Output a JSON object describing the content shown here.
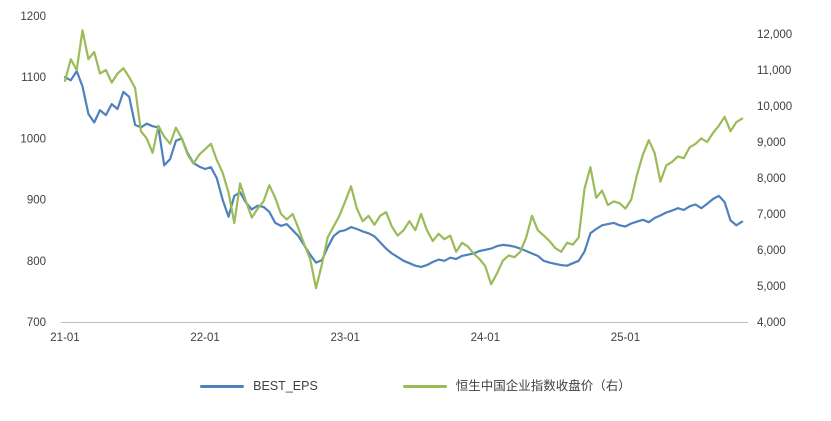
{
  "chart_data": {
    "type": "line",
    "x_unit": "months since 2021-01",
    "x_start": 0,
    "x_step": 0.5,
    "x_range": [
      0,
      58.5
    ],
    "x_ticks": [
      {
        "pos": 0,
        "label": "21-01"
      },
      {
        "pos": 12,
        "label": "22-01"
      },
      {
        "pos": 24,
        "label": "23-01"
      },
      {
        "pos": 36,
        "label": "24-01"
      },
      {
        "pos": 48,
        "label": "25-01"
      }
    ],
    "grid": false,
    "legend_position": "bottom",
    "background": "#ffffff",
    "axis_line_color": "#bfbfbf",
    "left_axis": {
      "min": 700,
      "max": 1200,
      "ticks": [
        700,
        800,
        900,
        1000,
        1100,
        1200
      ],
      "tick_labels": [
        "700",
        "800",
        "900",
        "1000",
        "1100",
        "1200"
      ]
    },
    "right_axis": {
      "min": 4000,
      "max": 12500,
      "ticks": [
        4000,
        5000,
        6000,
        7000,
        8000,
        9000,
        10000,
        11000,
        12000
      ],
      "tick_labels": [
        "4,000",
        "5,000",
        "6,000",
        "7,000",
        "8,000",
        "9,000",
        "10,000",
        "11,000",
        "12,000"
      ]
    },
    "series": [
      {
        "name": "BEST_EPS",
        "axis": "left",
        "color": "#4F81BD",
        "values": [
          1100,
          1095,
          1110,
          1085,
          1040,
          1026,
          1046,
          1038,
          1056,
          1048,
          1076,
          1068,
          1022,
          1018,
          1024,
          1020,
          1018,
          956,
          966,
          996,
          1000,
          976,
          960,
          954,
          950,
          953,
          935,
          900,
          872,
          906,
          912,
          895,
          884,
          890,
          888,
          880,
          862,
          857,
          860,
          850,
          840,
          825,
          810,
          797,
          801,
          822,
          840,
          848,
          850,
          855,
          852,
          848,
          845,
          840,
          830,
          820,
          812,
          806,
          800,
          796,
          792,
          790,
          793,
          798,
          802,
          800,
          805,
          803,
          808,
          810,
          812,
          816,
          818,
          820,
          824,
          826,
          825,
          823,
          820,
          816,
          812,
          808,
          800,
          797,
          795,
          793,
          792,
          796,
          800,
          815,
          845,
          852,
          858,
          860,
          862,
          858,
          856,
          861,
          864,
          867,
          863,
          870,
          874,
          879,
          882,
          886,
          883,
          889,
          892,
          886,
          893,
          901,
          906,
          896,
          866,
          858,
          864
        ]
      },
      {
        "name": "恒生中国企业指数收盘价（右）",
        "axis": "right",
        "color": "#9BBB59",
        "values": [
          10700,
          11300,
          11000,
          12100,
          11300,
          11500,
          10900,
          11000,
          10650,
          10900,
          11050,
          10800,
          10500,
          9300,
          9100,
          8700,
          9450,
          9150,
          8950,
          9400,
          9100,
          8650,
          8400,
          8650,
          8800,
          8950,
          8500,
          8150,
          7600,
          6750,
          7850,
          7350,
          6900,
          7150,
          7350,
          7800,
          7450,
          7000,
          6850,
          7000,
          6600,
          6150,
          5750,
          4940,
          5600,
          6350,
          6650,
          6950,
          7350,
          7770,
          7150,
          6800,
          6950,
          6700,
          6950,
          7050,
          6650,
          6400,
          6550,
          6800,
          6550,
          7000,
          6550,
          6250,
          6450,
          6300,
          6400,
          5950,
          6200,
          6100,
          5900,
          5750,
          5550,
          5050,
          5350,
          5700,
          5850,
          5800,
          5950,
          6350,
          6950,
          6550,
          6400,
          6250,
          6050,
          5950,
          6200,
          6150,
          6350,
          7700,
          8300,
          7450,
          7650,
          7250,
          7350,
          7300,
          7150,
          7400,
          8100,
          8650,
          9050,
          8700,
          7900,
          8350,
          8450,
          8600,
          8550,
          8850,
          8950,
          9100,
          9000,
          9250,
          9450,
          9700,
          9300,
          9550,
          9650
        ]
      }
    ]
  },
  "legend": {
    "items": [
      {
        "label": "BEST_EPS"
      },
      {
        "label": "恒生中国企业指数收盘价（右）"
      }
    ]
  }
}
